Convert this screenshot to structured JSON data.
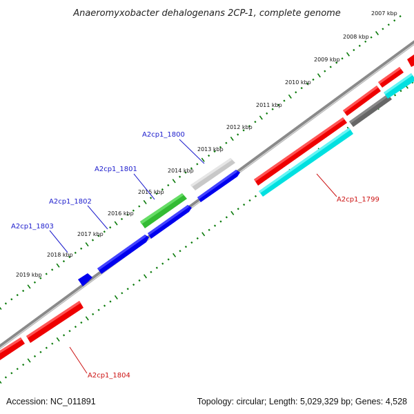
{
  "title": "Anaeromyxobacter dehalogenans 2CP-1, complete genome",
  "kbp_labels": [
    "2007 kbp",
    "2008 kbp",
    "2009 kbp",
    "2010 kbp",
    "2011 kbp",
    "2012 kbp",
    "2013 kbp",
    "2014 kbp",
    "2015 kbp",
    "2016 kbp",
    "2017 kbp",
    "2018 kbp",
    "2019 kbp"
  ],
  "genes": {
    "g1799": "A2cp1_1799",
    "g1800": "A2cp1_1800",
    "g1801": "A2cp1_1801",
    "g1802": "A2cp1_1802",
    "g1803": "A2cp1_1803",
    "g1804": "A2cp1_1804"
  },
  "colors": {
    "forward_gene": "#0000ee",
    "reverse_gene": "#ee0000",
    "rna_green": "#33bb33",
    "pseudo_grey": "#bdbdbd",
    "cyan_track": "#00e5e5",
    "dark_grey": "#666666",
    "tick_green": "#0a7a0a",
    "axis_grey": "#777777"
  },
  "footer": {
    "accession": "Accession: NC_011891",
    "summary": "Topology: circular; Length: 5,029,329 bp; Genes: 4,528"
  }
}
